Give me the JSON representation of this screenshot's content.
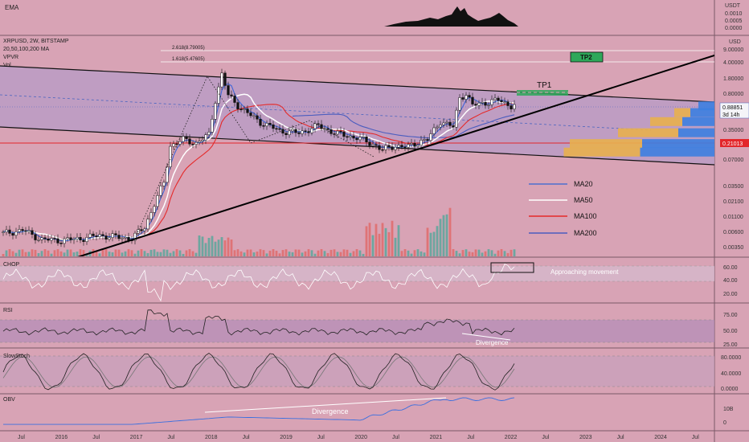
{
  "panels": {
    "ema": {
      "title": "EMA",
      "price_labels": [
        "USDT",
        "0.0010",
        "0.0005",
        "0.0000"
      ]
    },
    "main": {
      "symbol": "XRPUSD, 2W, BITSTAMP",
      "ma_label": "20,50,100,200 MA",
      "vpvr_label": "VPVR",
      "vol_label": "Vol",
      "currency": "USD",
      "price_labels": [
        "9.00000",
        "4.00000",
        "1.80000",
        "0.80000",
        "0.35000",
        "0.16000",
        "0.07000",
        "0.03500",
        "0.02100",
        "0.01100",
        "0.00600",
        "0.00350"
      ],
      "current_price": "0.88851",
      "countdown": "3d 14h",
      "support_price": "0.21013",
      "fib_levels": [
        {
          "label": "2.618(8.79005)",
          "value": 8.79
        },
        {
          "label": "1.618(5.47605)",
          "value": 5.476
        }
      ],
      "targets": [
        {
          "label": "TP1",
          "value": 1.2
        },
        {
          "label": "TP2",
          "value": 6.6
        }
      ],
      "legend": [
        {
          "label": "MA20",
          "color": "#4e6fcf"
        },
        {
          "label": "MA50",
          "color": "#ffffff"
        },
        {
          "label": "MA100",
          "color": "#e52a2a"
        },
        {
          "label": "MA200",
          "color": "#4a5dbf"
        }
      ]
    },
    "chop": {
      "title": "CHOP",
      "annotation": "Approaching movement",
      "price_labels": [
        "60.00",
        "40.00",
        "20.00"
      ]
    },
    "rsi": {
      "title": "RSI",
      "annotation": "Divergence",
      "price_labels": [
        "75.00",
        "50.00",
        "25.00"
      ]
    },
    "stoch": {
      "title": "SlowStoch",
      "price_labels": [
        "80.0000",
        "40.0000",
        "0.0000"
      ]
    },
    "obv": {
      "title": "OBV",
      "annotation": "Divergence",
      "price_labels": [
        "10B",
        "0"
      ]
    }
  },
  "time_axis": [
    "Jul",
    "2016",
    "Jul",
    "2017",
    "Jul",
    "2018",
    "Jul",
    "2019",
    "Jul",
    "2020",
    "Jul",
    "2021",
    "Jul",
    "2022",
    "Jul",
    "2023",
    "Jul",
    "2024",
    "Jul"
  ],
  "colors": {
    "background": "#d8a3b5",
    "channel_fill": "#bb9cc4",
    "up_volume": "#5aa79b",
    "down_volume": "#e06b6b",
    "vpvr_up": "#3d7fe0",
    "vpvr_down": "#e8b04e",
    "support": "#e3262b",
    "tp_box": "#2ea85a"
  },
  "chart_data": {
    "type": "candlestick",
    "title": "XRPUSD, 2W, BITSTAMP",
    "y_scale": "log",
    "ylim": [
      0.0032,
      12
    ],
    "time_ticks": [
      "Jul",
      "2016",
      "Jul",
      "2017",
      "Jul",
      "2018",
      "Jul",
      "2019",
      "Jul",
      "2020",
      "Jul",
      "2021",
      "Jul",
      "2022",
      "Jul",
      "2023",
      "Jul",
      "2024",
      "Jul"
    ],
    "price_series": [
      {
        "period": 0,
        "close": 0.0075
      },
      {
        "period": 6,
        "close": 0.0085
      },
      {
        "period": 12,
        "close": 0.006
      },
      {
        "period": 18,
        "close": 0.0058
      },
      {
        "period": 24,
        "close": 0.0062
      },
      {
        "period": 30,
        "close": 0.007
      },
      {
        "period": 36,
        "close": 0.0065
      },
      {
        "period": 40,
        "close": 0.0063
      },
      {
        "period": 44,
        "close": 0.0095
      },
      {
        "period": 48,
        "close": 0.03
      },
      {
        "period": 50,
        "close": 0.05
      },
      {
        "period": 52,
        "close": 0.2
      },
      {
        "period": 56,
        "close": 0.25
      },
      {
        "period": 60,
        "close": 0.22
      },
      {
        "period": 64,
        "close": 0.3
      },
      {
        "period": 66,
        "close": 1.1
      },
      {
        "period": 68,
        "close": 2.9
      },
      {
        "period": 70,
        "close": 1.3
      },
      {
        "period": 74,
        "close": 0.8
      },
      {
        "period": 80,
        "close": 0.48
      },
      {
        "period": 86,
        "close": 0.35
      },
      {
        "period": 92,
        "close": 0.32
      },
      {
        "period": 98,
        "close": 0.42
      },
      {
        "period": 104,
        "close": 0.31
      },
      {
        "period": 110,
        "close": 0.27
      },
      {
        "period": 116,
        "close": 0.2
      },
      {
        "period": 118,
        "close": 0.17
      },
      {
        "period": 122,
        "close": 0.2
      },
      {
        "period": 126,
        "close": 0.19
      },
      {
        "period": 130,
        "close": 0.24
      },
      {
        "period": 132,
        "close": 0.25
      },
      {
        "period": 136,
        "close": 0.5
      },
      {
        "period": 140,
        "close": 0.4
      },
      {
        "period": 142,
        "close": 1.2
      },
      {
        "period": 144,
        "close": 1.4
      },
      {
        "period": 146,
        "close": 0.9
      },
      {
        "period": 150,
        "close": 1.0
      },
      {
        "period": 154,
        "close": 1.1
      },
      {
        "period": 158,
        "close": 0.88851
      }
    ],
    "moving_averages": [
      "MA20",
      "MA50",
      "MA100",
      "MA200"
    ],
    "indicators": [
      "CHOP",
      "RSI",
      "SlowStoch",
      "OBV"
    ]
  }
}
